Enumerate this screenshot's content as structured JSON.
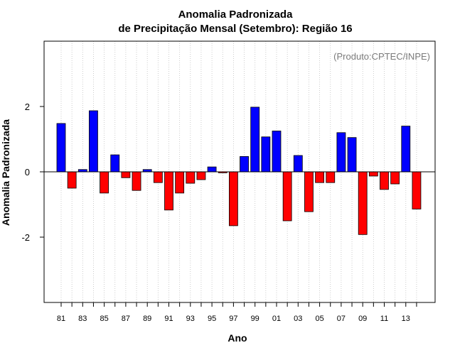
{
  "chart_data": {
    "type": "bar",
    "title": "Anomalia Padronizada",
    "subtitle": "de Precipitação Mensal (Setembro): Região 16",
    "credit": "(Produto:CPTEC/INPE)",
    "xlabel": "Ano",
    "ylabel": "Anomalia Padronizada",
    "ylim": [
      -4,
      4
    ],
    "yticks": [
      -2,
      0,
      2
    ],
    "ytick_labels": [
      "-2",
      "0",
      "2"
    ],
    "grid": "vertical dotted",
    "colors": {
      "positive": "#0000ff",
      "negative": "#ff0000",
      "grid": "#c0c0c0",
      "zero_line": "#000000"
    },
    "categories": [
      "81",
      "82",
      "83",
      "84",
      "85",
      "86",
      "87",
      "88",
      "89",
      "90",
      "91",
      "92",
      "93",
      "94",
      "95",
      "96",
      "97",
      "98",
      "99",
      "00",
      "01",
      "02",
      "03",
      "04",
      "05",
      "06",
      "07",
      "08",
      "09",
      "10",
      "11",
      "12",
      "13",
      "14"
    ],
    "xtick_labels": [
      "81",
      "",
      "83",
      "",
      "85",
      "",
      "87",
      "",
      "89",
      "",
      "91",
      "",
      "93",
      "",
      "95",
      "",
      "97",
      "",
      "99",
      "",
      "01",
      "",
      "03",
      "",
      "05",
      "",
      "07",
      "",
      "09",
      "",
      "11",
      "",
      "13",
      ""
    ],
    "values": [
      1.48,
      -0.5,
      0.07,
      1.87,
      -0.65,
      0.52,
      -0.18,
      -0.57,
      0.07,
      -0.33,
      -1.17,
      -0.65,
      -0.35,
      -0.24,
      0.15,
      -0.03,
      -1.65,
      0.47,
      1.98,
      1.07,
      1.25,
      -1.5,
      0.5,
      -1.22,
      -0.33,
      -0.33,
      1.2,
      1.05,
      -1.92,
      -0.13,
      -0.54,
      -0.37,
      1.4,
      -1.14
    ]
  }
}
